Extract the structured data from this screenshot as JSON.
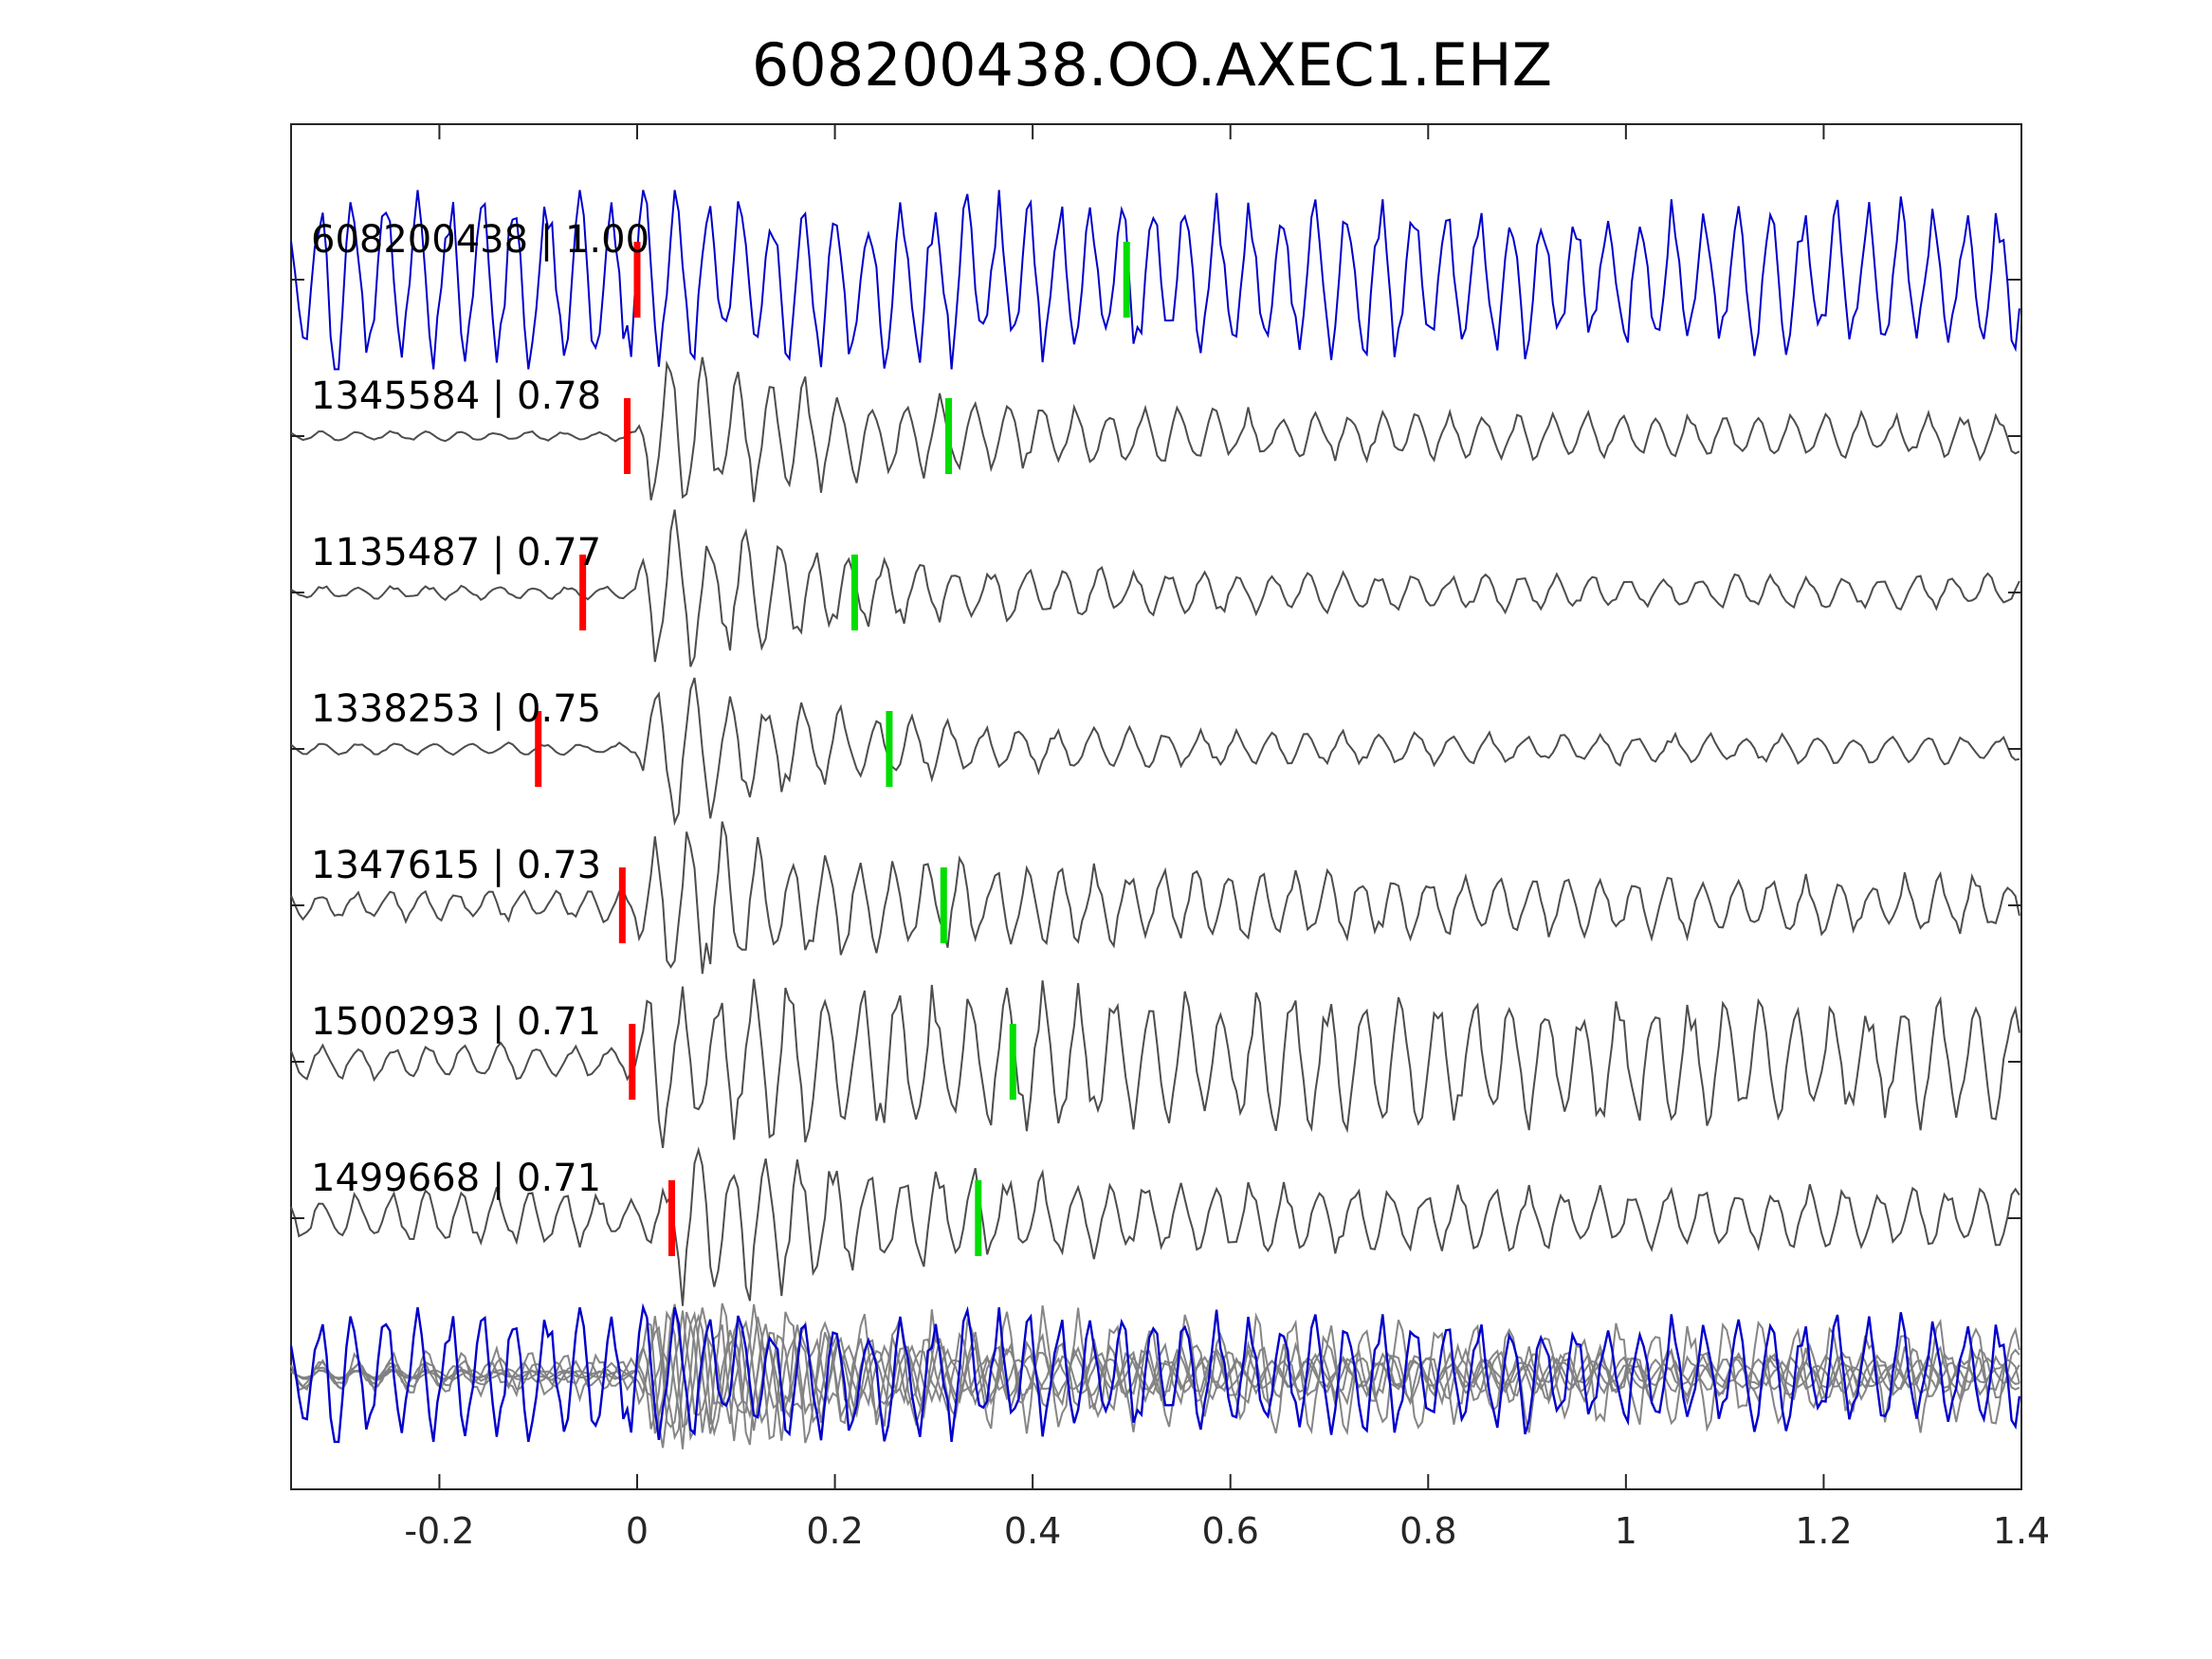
{
  "chart_data": {
    "type": "line",
    "title": "608200438.OO.AXEC1.EHZ",
    "xlabel": "",
    "ylabel": "",
    "xlim": [
      -0.35,
      1.4
    ],
    "xticks": [
      -0.2,
      0,
      0.2,
      0.4,
      0.6,
      0.8,
      1,
      1.2,
      1.4
    ],
    "xtick_labels": [
      "-0.2",
      "0",
      "0.2",
      "0.4",
      "0.6",
      "0.8",
      "1",
      "1.2",
      "1.4"
    ],
    "grid": false,
    "colors": {
      "reference": "#0000cc",
      "match": "#4d4d4d",
      "overlay_match": "#7f7f7f",
      "p_pick": "#ff0000",
      "s_pick": "#00dd00",
      "axes": "#262626"
    },
    "series": [
      {
        "name": "608200438",
        "label": "608200438 | 1.00",
        "cc": 1.0,
        "reference": true,
        "p_pick": 0.0,
        "s_pick": 0.495,
        "onset": -0.35,
        "pre_amp": 0.28,
        "peak_amp": 1.0,
        "post_amp": 0.75,
        "decay": 0.55,
        "freq": 30.5,
        "seed": 11
      },
      {
        "name": "1345584",
        "label": "1345584 | 0.78",
        "cc": 0.78,
        "reference": false,
        "p_pick": -0.01,
        "s_pick": 0.315,
        "onset": 0.0,
        "pre_amp": 0.05,
        "peak_amp": 1.0,
        "post_amp": 0.22,
        "decay": 1.6,
        "freq": 29.0,
        "seed": 23
      },
      {
        "name": "1135487",
        "label": "1135487 | 0.77",
        "cc": 0.77,
        "reference": false,
        "p_pick": -0.055,
        "s_pick": 0.22,
        "onset": 0.0,
        "pre_amp": 0.07,
        "peak_amp": 0.95,
        "post_amp": 0.18,
        "decay": 1.8,
        "freq": 28.0,
        "seed": 37
      },
      {
        "name": "1338253",
        "label": "1338253 | 0.75",
        "cc": 0.75,
        "reference": false,
        "p_pick": -0.1,
        "s_pick": 0.255,
        "onset": 0.0,
        "pre_amp": 0.06,
        "peak_amp": 0.95,
        "post_amp": 0.15,
        "decay": 1.9,
        "freq": 27.0,
        "seed": 51
      },
      {
        "name": "1347615",
        "label": "1347615 | 0.73",
        "cc": 0.73,
        "reference": false,
        "p_pick": -0.015,
        "s_pick": 0.31,
        "onset": 0.0,
        "pre_amp": 0.16,
        "peak_amp": 1.0,
        "post_amp": 0.3,
        "decay": 1.4,
        "freq": 29.5,
        "seed": 67
      },
      {
        "name": "1500293",
        "label": "1500293 | 0.71",
        "cc": 0.71,
        "reference": false,
        "p_pick": -0.005,
        "s_pick": 0.38,
        "onset": 0.0,
        "pre_amp": 0.18,
        "peak_amp": 0.95,
        "post_amp": 0.6,
        "decay": 0.7,
        "freq": 27.5,
        "seed": 83
      },
      {
        "name": "1499668",
        "label": "1499668 | 0.71",
        "cc": 0.71,
        "reference": false,
        "p_pick": 0.035,
        "s_pick": 0.345,
        "onset": 0.03,
        "pre_amp": 0.28,
        "peak_amp": 0.95,
        "post_amp": 0.3,
        "decay": 1.3,
        "freq": 28.5,
        "seed": 97
      }
    ],
    "overlay": {
      "stacked": true,
      "description": ""
    }
  }
}
